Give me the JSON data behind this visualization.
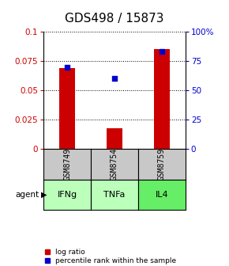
{
  "title": "GDS498 / 15873",
  "samples": [
    "GSM8749",
    "GSM8754",
    "GSM8759"
  ],
  "agents": [
    "IFNg",
    "TNFa",
    "IL4"
  ],
  "log_ratio": [
    0.069,
    0.018,
    0.085
  ],
  "percentile_rank": [
    0.7,
    0.6,
    0.83
  ],
  "bar_color": "#cc0000",
  "dot_color": "#0000cc",
  "ylim_left": [
    0,
    0.1
  ],
  "ylim_right": [
    0,
    1.0
  ],
  "yticks_left": [
    0,
    0.025,
    0.05,
    0.075,
    0.1
  ],
  "ytick_labels_left": [
    "0",
    "0.025",
    "0.05",
    "0.075",
    "0.1"
  ],
  "yticks_right": [
    0,
    0.25,
    0.5,
    0.75,
    1.0
  ],
  "ytick_labels_right": [
    "0",
    "25",
    "50",
    "75",
    "100%"
  ],
  "agent_colors": [
    "#bbffbb",
    "#bbffbb",
    "#66ee66"
  ],
  "sample_bg_color": "#c8c8c8",
  "title_fontsize": 11,
  "tick_fontsize": 7.5,
  "legend_fontsize": 6.5
}
